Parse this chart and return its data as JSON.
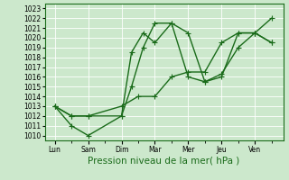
{
  "title": "",
  "xlabel": "Pression niveau de la mer( hPa )",
  "ylabel": "",
  "background_color": "#cce8cc",
  "grid_color": "#ffffff",
  "line_color": "#1a6b1a",
  "ylim": [
    1010,
    1023
  ],
  "yticks": [
    1010,
    1011,
    1012,
    1013,
    1014,
    1015,
    1016,
    1017,
    1018,
    1019,
    1020,
    1021,
    1022,
    1023
  ],
  "x_labels": [
    "Lun",
    "Sam",
    "Dim",
    "Mar",
    "Mer",
    "Jeu",
    "Ven"
  ],
  "x_positions": [
    0,
    1,
    2,
    3,
    4,
    5,
    6
  ],
  "series": [
    {
      "x": [
        0,
        0.5,
        1.0,
        2.0,
        2.3,
        2.65,
        3.0,
        3.5,
        4.0,
        4.5,
        5.0,
        5.5,
        6.0,
        6.5
      ],
      "y": [
        1013,
        1011,
        1010,
        1012,
        1018.5,
        1020.5,
        1019.5,
        1021.5,
        1020.5,
        1015.5,
        1016.3,
        1019.0,
        1020.5,
        1019.5
      ]
    },
    {
      "x": [
        0,
        0.5,
        1.0,
        2.0,
        2.3,
        2.65,
        3.0,
        3.5,
        4.0,
        4.5,
        5.0,
        5.5,
        6.0,
        6.5
      ],
      "y": [
        1013,
        1012,
        1012,
        1012,
        1015.0,
        1019.0,
        1021.5,
        1021.5,
        1016.0,
        1015.5,
        1016.0,
        1020.5,
        1020.5,
        1022.0
      ]
    },
    {
      "x": [
        0,
        0.5,
        1.0,
        2.0,
        2.5,
        3.0,
        3.5,
        4.0,
        4.5,
        5.0,
        5.5,
        6.0,
        6.5
      ],
      "y": [
        1013,
        1012,
        1012,
        1013,
        1014.0,
        1014.0,
        1016.0,
        1016.5,
        1016.5,
        1019.5,
        1020.5,
        1020.5,
        1019.5
      ]
    }
  ],
  "marker": "+",
  "marker_size": 4,
  "linewidth": 1.0,
  "tick_fontsize": 5.5,
  "xlabel_fontsize": 7.5
}
